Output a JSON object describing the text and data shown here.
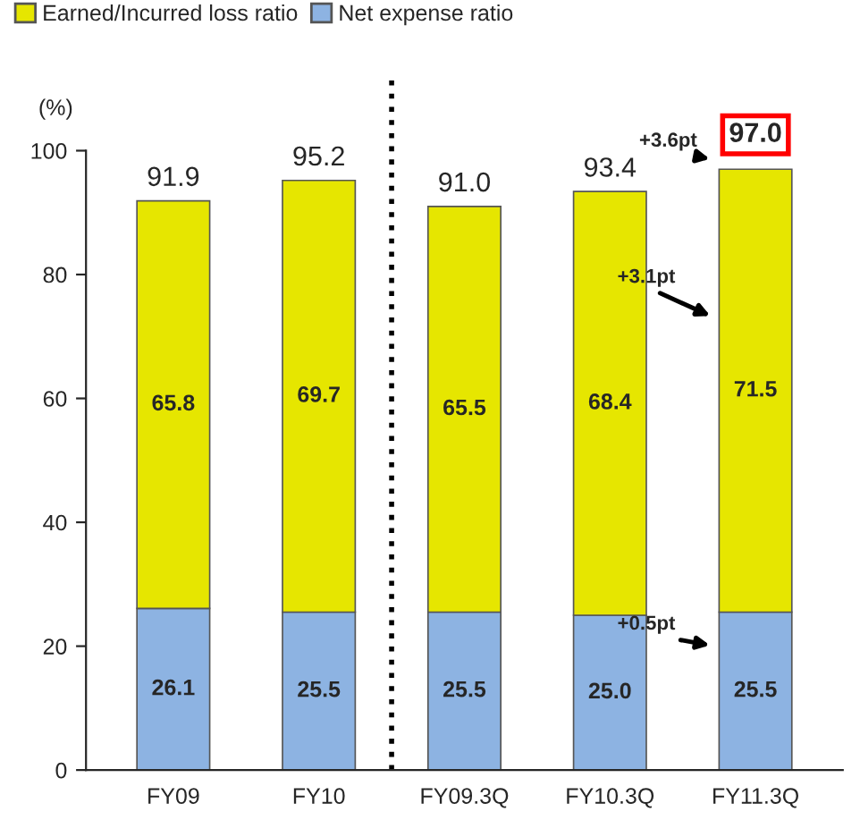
{
  "chart_data": {
    "type": "bar",
    "stacked": true,
    "ylabel": "(%)",
    "categories": [
      "FY09",
      "FY10",
      "FY09.3Q",
      "FY10.3Q",
      "FY11.3Q"
    ],
    "series": [
      {
        "name": "Net expense ratio",
        "color": "#8db3e2",
        "values": [
          26.1,
          25.5,
          25.5,
          25.0,
          25.5
        ],
        "value_labels": [
          "26.1",
          "25.5",
          "25.5",
          "25.0",
          "25.5"
        ]
      },
      {
        "name": "Earned/Incurred loss ratio",
        "color": "#e6e600",
        "values": [
          65.8,
          69.7,
          65.5,
          68.4,
          71.5
        ],
        "value_labels": [
          "65.8",
          "69.7",
          "65.5",
          "68.4",
          "71.5"
        ]
      }
    ],
    "totals": [
      "91.9",
      "95.2",
      "91.0",
      "93.4",
      "97.0"
    ],
    "ylim": [
      0,
      100
    ],
    "yticks": [
      0,
      20,
      40,
      60,
      80,
      100
    ],
    "annotations": [
      "+3.6pt",
      "+3.1pt",
      "+0.5pt"
    ],
    "legend": "top left",
    "grid": false
  }
}
